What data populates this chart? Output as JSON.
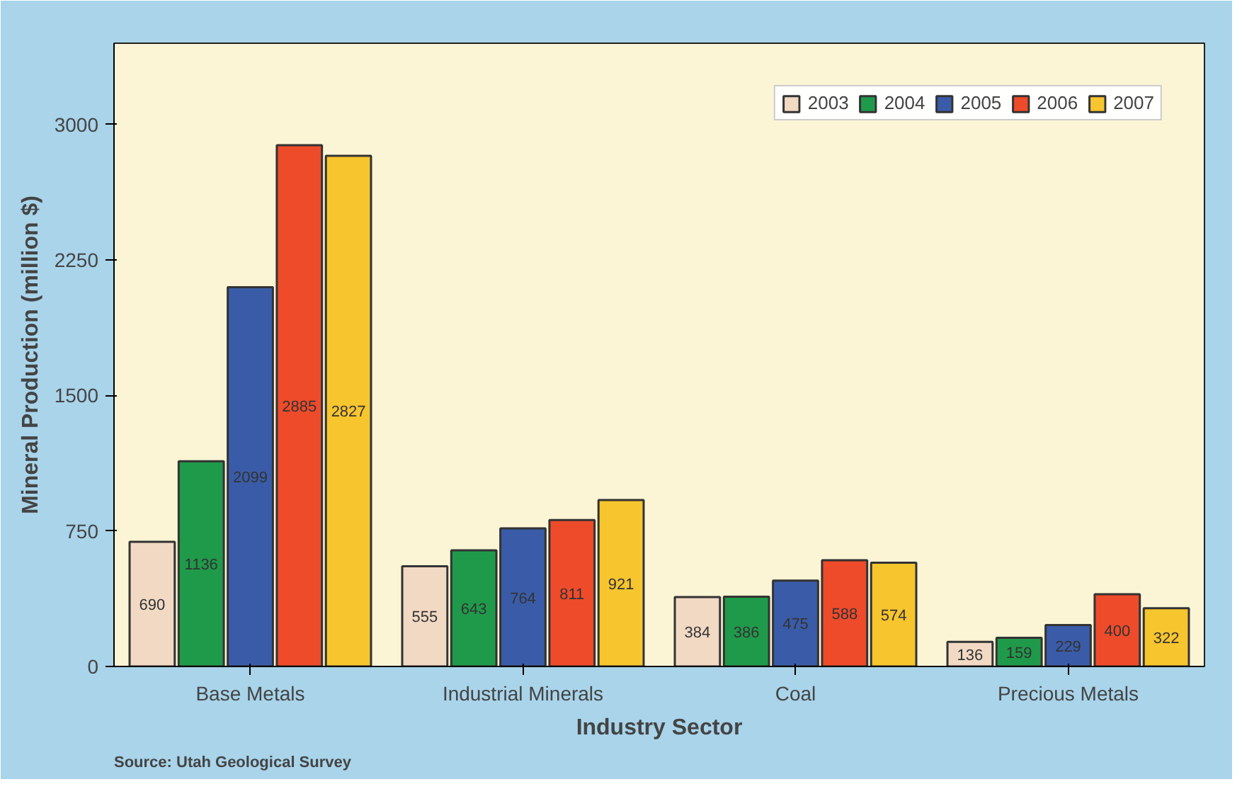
{
  "chart_data": {
    "type": "bar",
    "xlabel": "Industry Sector",
    "ylabel": "Mineral Production (million $)",
    "annotations": [
      "Source: Utah Geological Survey"
    ],
    "categories": [
      "Base Metals",
      "Industrial Minerals",
      "Coal",
      "Precious Metals"
    ],
    "series": [
      {
        "name": "2003",
        "color": "#f2d9c4",
        "values": [
          690,
          555,
          384,
          136
        ]
      },
      {
        "name": "2004",
        "color": "#1f9a4a",
        "values": [
          1136,
          643,
          386,
          159
        ]
      },
      {
        "name": "2005",
        "color": "#3a5ca8",
        "values": [
          2099,
          764,
          475,
          229
        ]
      },
      {
        "name": "2006",
        "color": "#ee4b2b",
        "values": [
          2885,
          811,
          588,
          400
        ]
      },
      {
        "name": "2007",
        "color": "#f7c52e",
        "values": [
          2827,
          921,
          574,
          322
        ]
      }
    ],
    "ylim": [
      0,
      3450
    ],
    "yticks": [
      0,
      750,
      1500,
      2250,
      3000
    ],
    "grid": false,
    "legend": "top right",
    "data_labels": true
  }
}
